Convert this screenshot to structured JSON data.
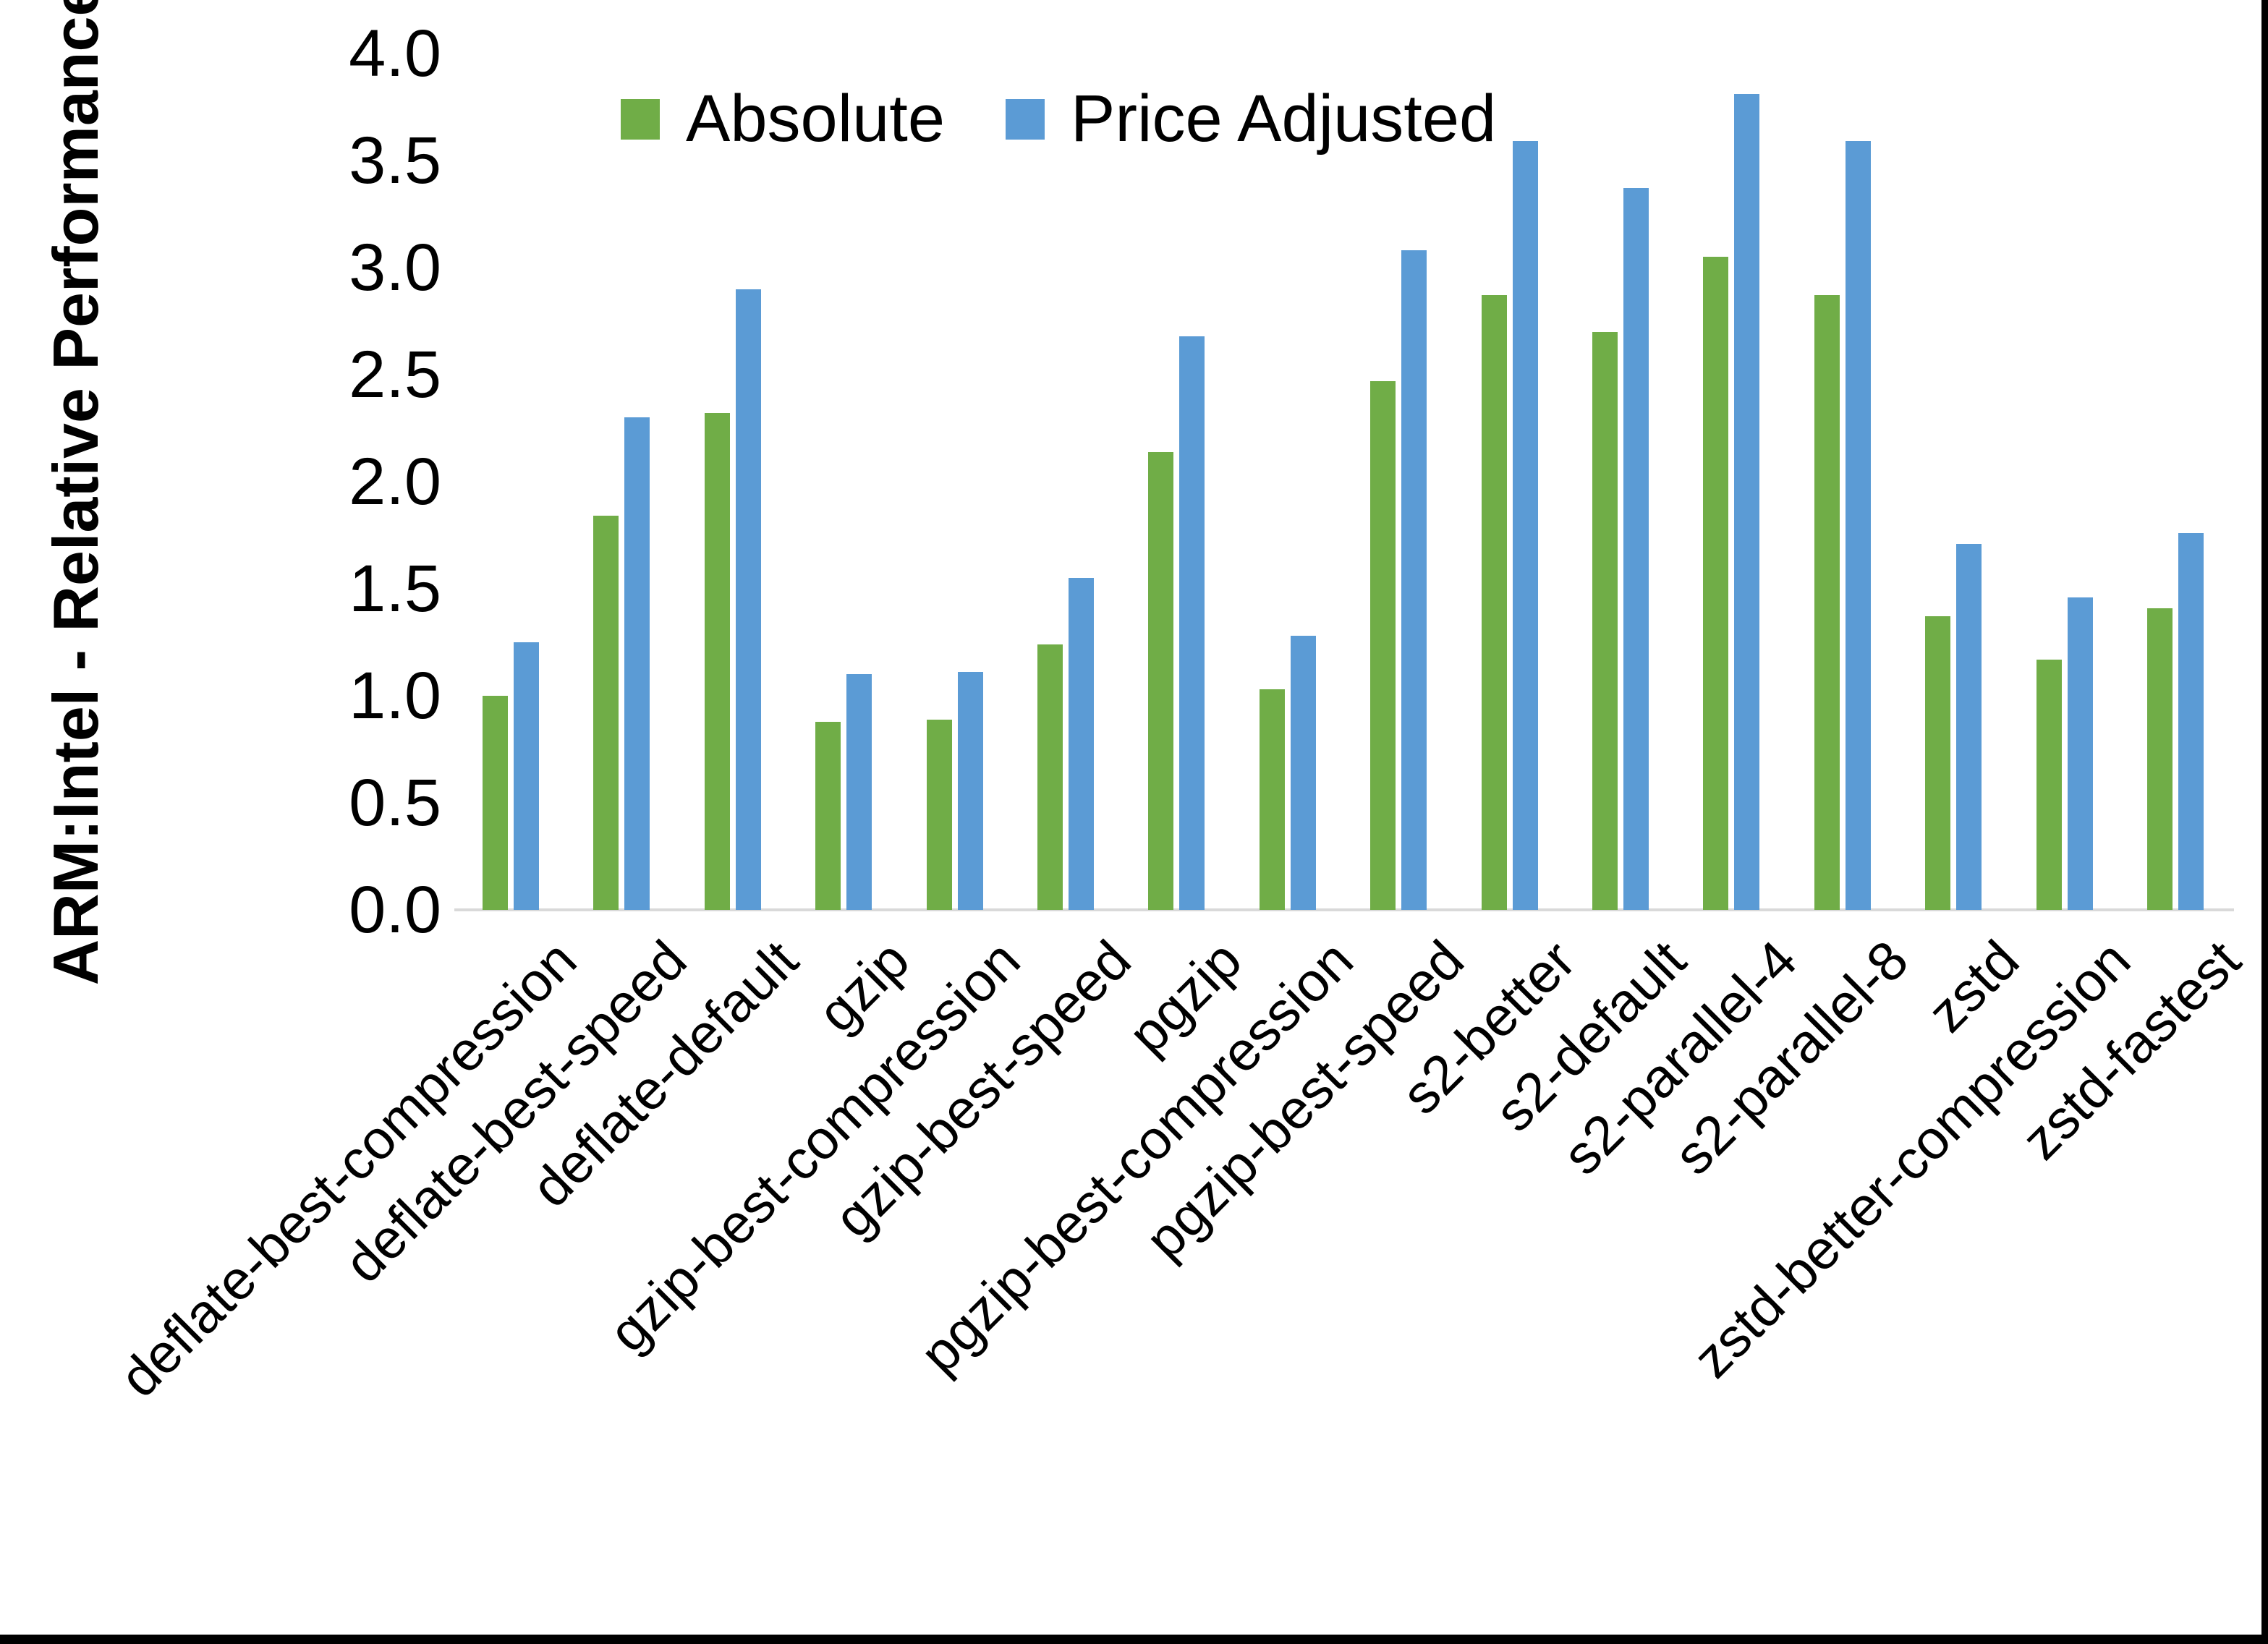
{
  "chart_data": {
    "type": "bar",
    "title": "",
    "xlabel": "",
    "ylabel": "ARM:Intel - Relative Performance",
    "ylim": [
      0.0,
      4.0
    ],
    "ytick_step": 0.5,
    "yticks": [
      "0.0",
      "0.5",
      "1.0",
      "1.5",
      "2.0",
      "2.5",
      "3.0",
      "3.5",
      "4.0"
    ],
    "grid": false,
    "legend_position": "top-center",
    "categories": [
      "deflate-best-compression",
      "deflate-best-speed",
      "deflate-default",
      "gzip",
      "gzip-best-compression",
      "gzip-best-speed",
      "pgzip",
      "pgzip-best-compression",
      "pgzip-best-speed",
      "s2-better",
      "s2-default",
      "s2-parallel-4",
      "s2-parallel-8",
      "zstd",
      "zstd-better-compression",
      "zstd-fastest"
    ],
    "series": [
      {
        "name": "Absolute",
        "color": "#70AD47",
        "values": [
          1.0,
          1.84,
          2.32,
          0.88,
          0.89,
          1.24,
          2.14,
          1.03,
          2.47,
          2.87,
          2.7,
          3.05,
          2.87,
          1.37,
          1.17,
          1.41
        ]
      },
      {
        "name": "Price Adjusted",
        "color": "#5B9BD5",
        "values": [
          1.25,
          2.3,
          2.9,
          1.1,
          1.11,
          1.55,
          2.68,
          1.28,
          3.08,
          3.59,
          3.37,
          3.81,
          3.59,
          1.71,
          1.46,
          1.76
        ]
      }
    ]
  },
  "legend": {
    "items": [
      {
        "label": "Absolute",
        "color": "#70AD47"
      },
      {
        "label": "Price Adjusted",
        "color": "#5B9BD5"
      }
    ]
  },
  "colors": {
    "background": "#ffffff",
    "axis_line": "#d9d9d9",
    "text": "#000000",
    "border": "#000000"
  }
}
